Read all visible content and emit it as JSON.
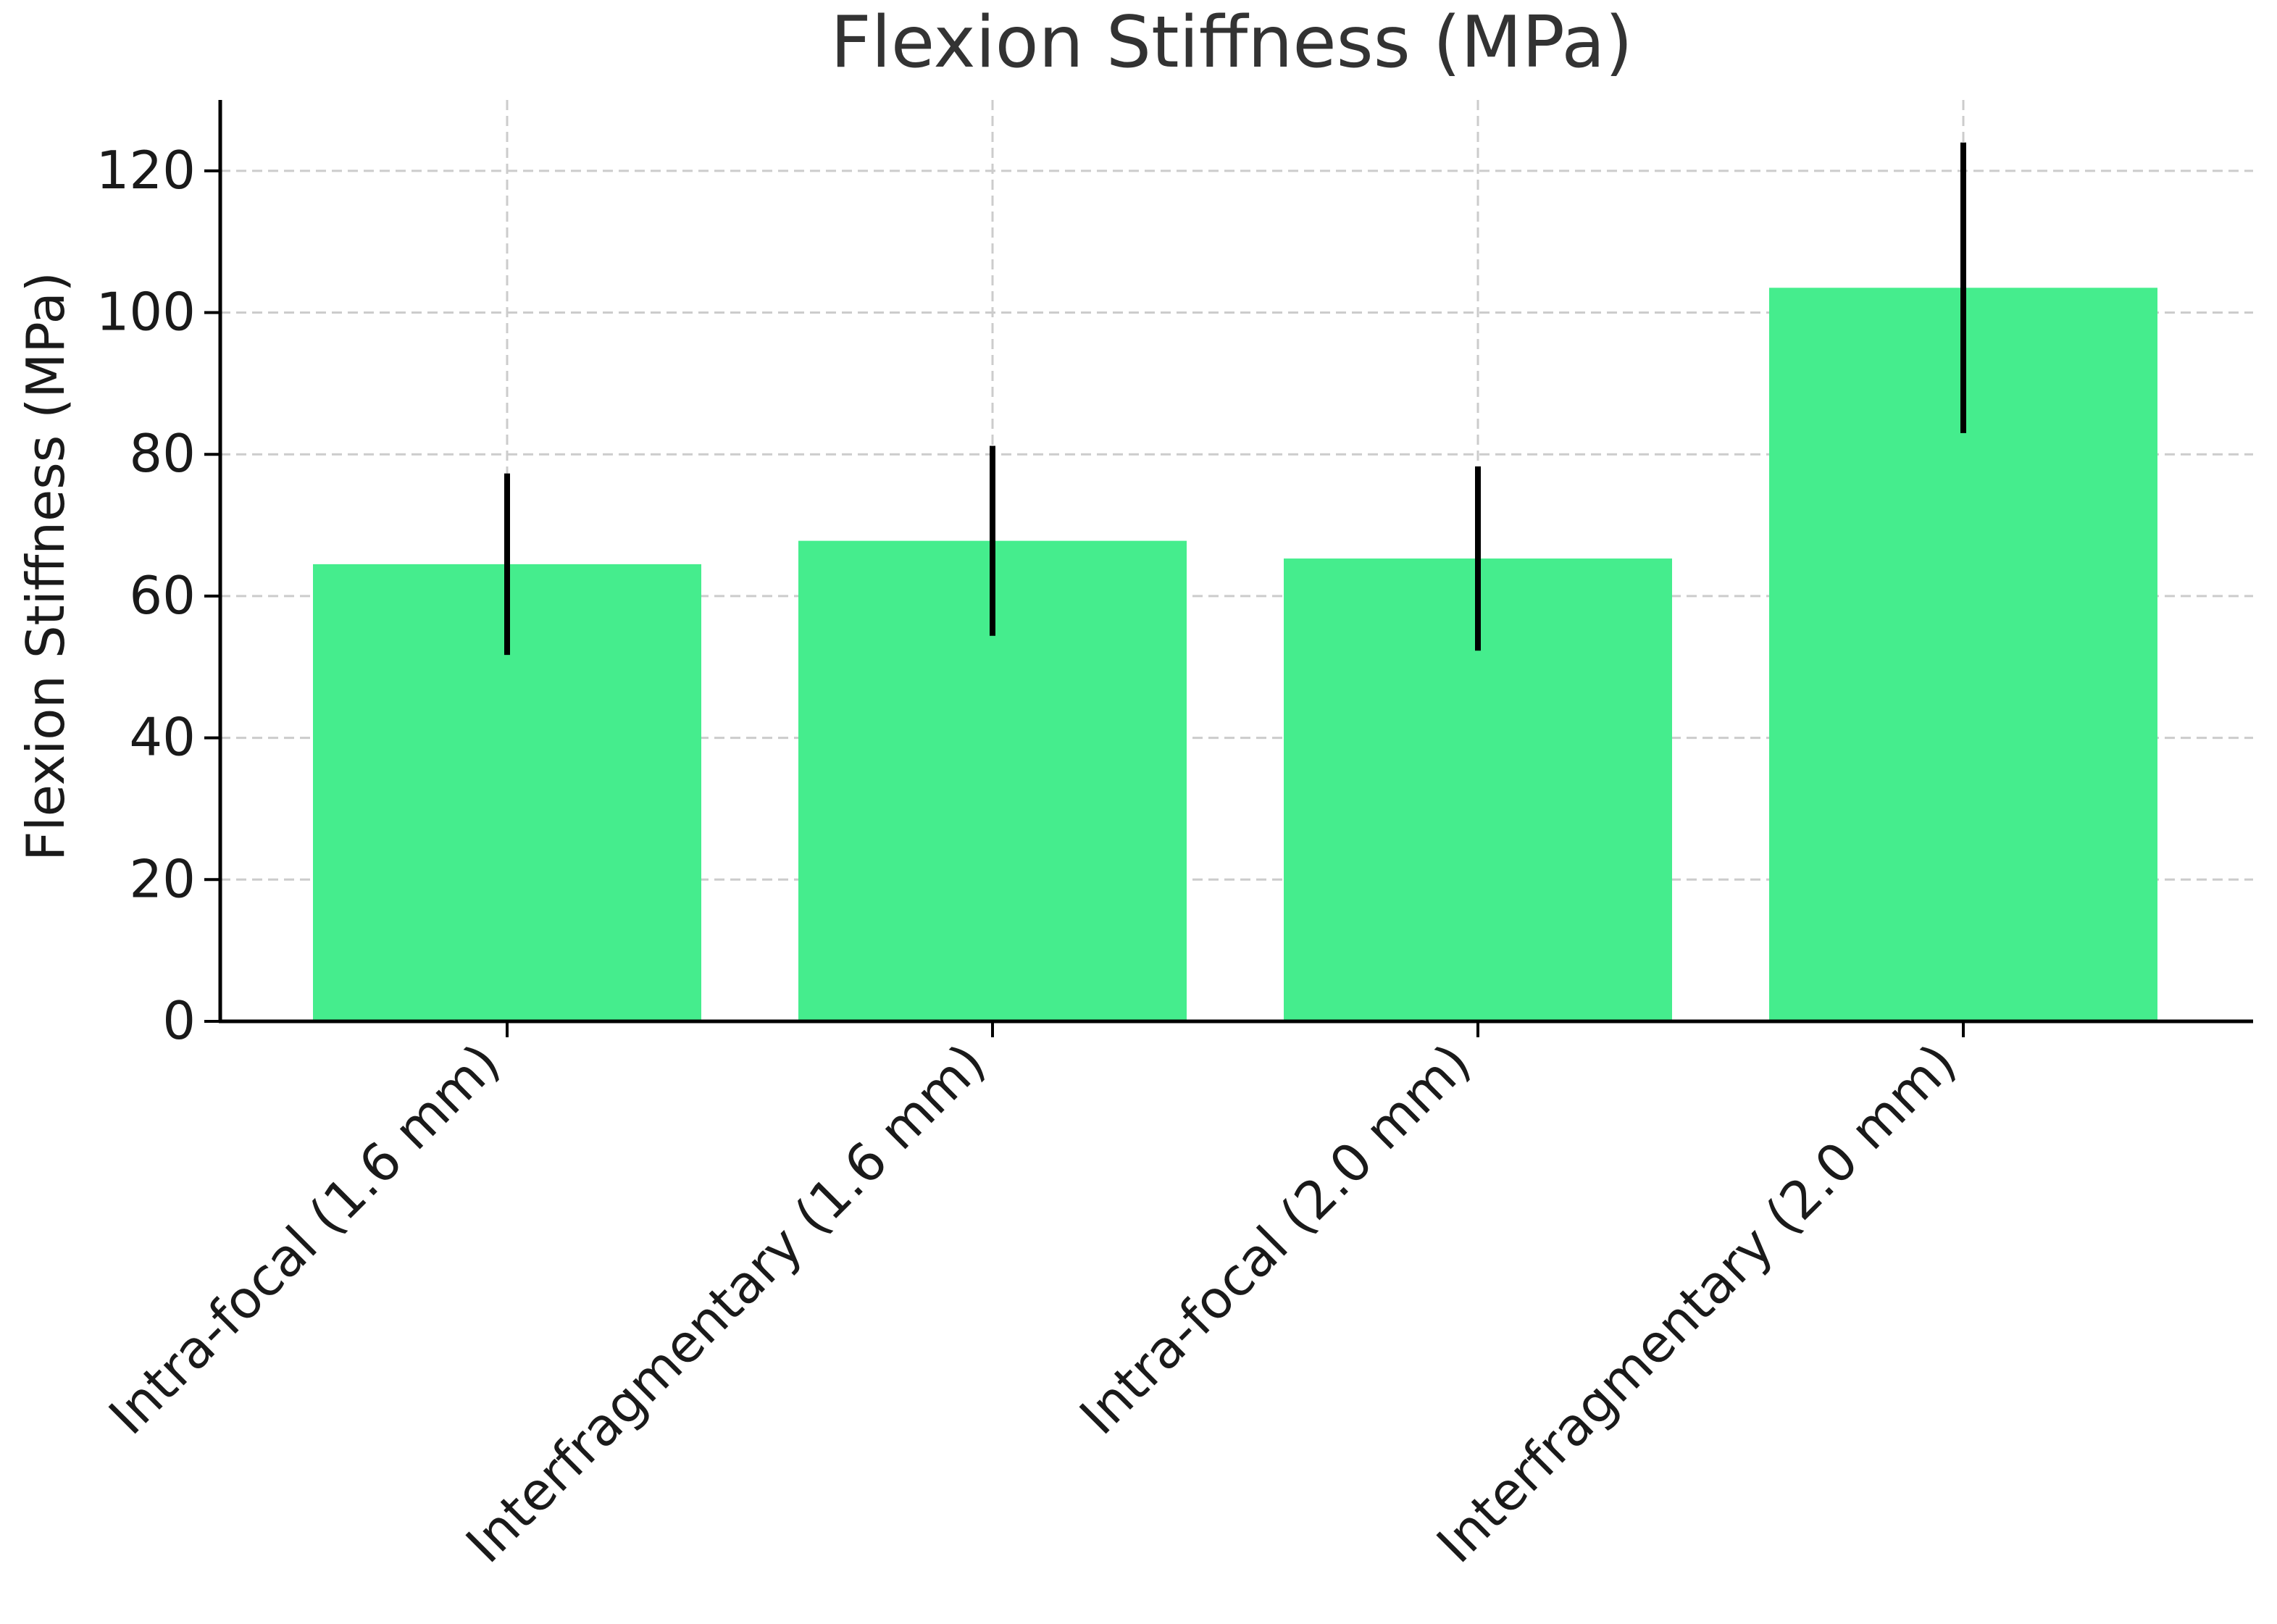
{
  "chart_data": {
    "type": "bar",
    "title": "Flexion Stiffness (MPa)",
    "xlabel": "",
    "ylabel": "Flexion Stiffness (MPa)",
    "categories": [
      "Intra-focal (1.6 mm)",
      "Interfragmentary (1.6 mm)",
      "Intra-focal (2.0 mm)",
      "Interfragmentary (2.0 mm)"
    ],
    "values": [
      64.5,
      67.8,
      65.3,
      103.5
    ],
    "error": [
      12.8,
      13.4,
      13.0,
      20.5
    ],
    "ylim": [
      0,
      130
    ],
    "yticks": [
      0,
      20,
      40,
      60,
      80,
      100,
      120
    ],
    "grid": true,
    "bar_color": "#45ed8d",
    "error_color": "#000000"
  }
}
